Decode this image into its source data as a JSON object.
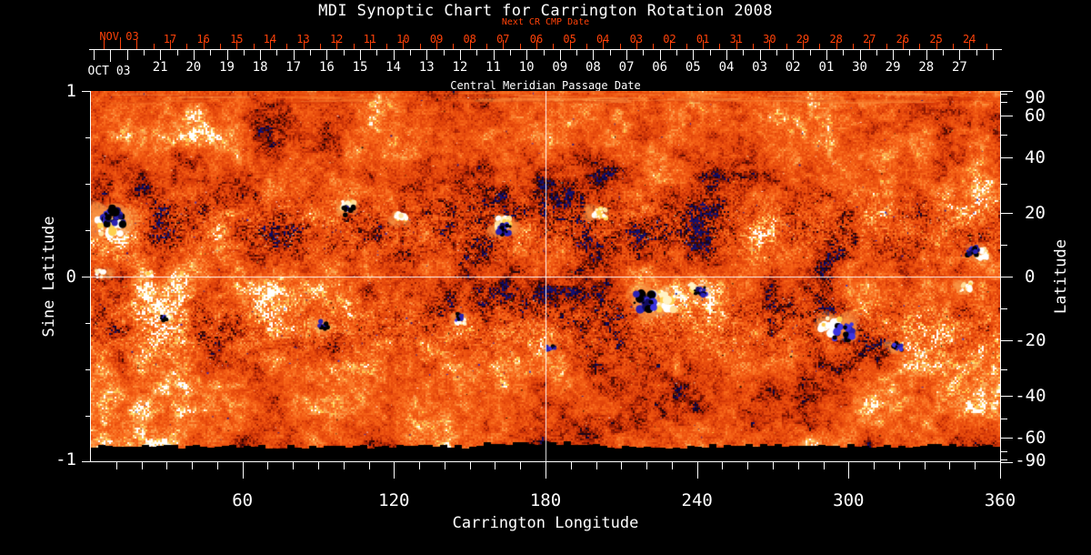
{
  "title": "MDI Synoptic Chart for Carrington Rotation 2008",
  "annotations": {
    "next_cr": "Next CR CMP Date",
    "cmp": "Central Meridian Passage Date"
  },
  "date_axis": {
    "next_cr_month": "NOV 03",
    "cmp_month": "OCT 03",
    "next_cr_days": [
      "17",
      "16",
      "15",
      "14",
      "13",
      "12",
      "11",
      "10",
      "09",
      "08",
      "07",
      "06",
      "05",
      "04",
      "03",
      "02",
      "01",
      "31",
      "30",
      "29",
      "28",
      "27",
      "26",
      "25",
      "24"
    ],
    "cmp_days": [
      "21",
      "20",
      "19",
      "18",
      "17",
      "16",
      "15",
      "14",
      "13",
      "12",
      "11",
      "10",
      "09",
      "08",
      "07",
      "06",
      "05",
      "04",
      "03",
      "02",
      "01",
      "30",
      "29",
      "28",
      "27"
    ]
  },
  "axes": {
    "left": {
      "label": "Sine Latitude",
      "ticks": [
        "1",
        "0",
        "-1"
      ]
    },
    "right": {
      "label": "Latitude",
      "ticks": [
        "90",
        "60",
        "40",
        "20",
        "0",
        "-20",
        "-40",
        "-60",
        "-90"
      ]
    },
    "bottom": {
      "label": "Carrington Longitude",
      "ticks": [
        "60",
        "120",
        "180",
        "240",
        "300",
        "360"
      ]
    }
  },
  "colors": {
    "background": "#000000",
    "text": "#ffffff",
    "date_red": "#ff4209",
    "base_field": "#e8480c",
    "positive_flux": "#ffffff",
    "negative_flux": "#221a9e"
  },
  "chart_data": {
    "type": "heatmap",
    "title": "MDI Synoptic Chart for Carrington Rotation 2008",
    "xlabel": "Carrington Longitude",
    "xlim": [
      0,
      360
    ],
    "x_major_ticks": [
      60,
      120,
      180,
      240,
      300,
      360
    ],
    "x_minor_step": 10,
    "ylabel_left": "Sine Latitude",
    "ylim_sine": [
      -1,
      1
    ],
    "left_ticks_sine": [
      1,
      0,
      -1
    ],
    "ylabel_right": "Latitude",
    "right_ticks_deg": [
      90,
      60,
      40,
      20,
      0,
      -20,
      -40,
      -60,
      -90
    ],
    "grid": false,
    "crosshair": {
      "longitude": 180,
      "latitude": 0
    },
    "description": "Line-of-sight magnetic field synoptic map: speckled orange/red quiet-sun field, white/cream positive-polarity active regions, black/navy negative-polarity regions, white crosshair at 180 deg longitude and 0 latitude, ragged black missing-data band along the bottom edge, smoothed streaky band at top (north pole).",
    "active_regions": [
      {
        "lon": 8,
        "sinlat": 0.3,
        "size": 24,
        "type": "bipolar"
      },
      {
        "lon": 5,
        "sinlat": 0.02,
        "size": 10,
        "type": "pos"
      },
      {
        "lon": 22,
        "sinlat": 0.01,
        "size": 7,
        "type": "pos"
      },
      {
        "lon": 30,
        "sinlat": -0.22,
        "size": 8,
        "type": "bipolar"
      },
      {
        "lon": 90,
        "sinlat": -0.26,
        "size": 11,
        "type": "neg"
      },
      {
        "lon": 102,
        "sinlat": 0.37,
        "size": 13,
        "type": "bipolar"
      },
      {
        "lon": 122,
        "sinlat": 0.31,
        "size": 11,
        "type": "pos"
      },
      {
        "lon": 146,
        "sinlat": -0.23,
        "size": 10,
        "type": "bipolar"
      },
      {
        "lon": 163,
        "sinlat": 0.27,
        "size": 16,
        "type": "bipolar"
      },
      {
        "lon": 200,
        "sinlat": 0.34,
        "size": 12,
        "type": "pos"
      },
      {
        "lon": 182,
        "sinlat": -0.38,
        "size": 9,
        "type": "neg"
      },
      {
        "lon": 223,
        "sinlat": -0.13,
        "size": 25,
        "type": "bipolar"
      },
      {
        "lon": 240,
        "sinlat": -0.07,
        "size": 12,
        "type": "bipolar"
      },
      {
        "lon": 295,
        "sinlat": -0.28,
        "size": 21,
        "type": "bipolar"
      },
      {
        "lon": 318,
        "sinlat": -0.37,
        "size": 10,
        "type": "neg"
      },
      {
        "lon": 345,
        "sinlat": -0.06,
        "size": 11,
        "type": "pos"
      },
      {
        "lon": 351,
        "sinlat": 0.13,
        "size": 13,
        "type": "bipolar"
      }
    ]
  }
}
